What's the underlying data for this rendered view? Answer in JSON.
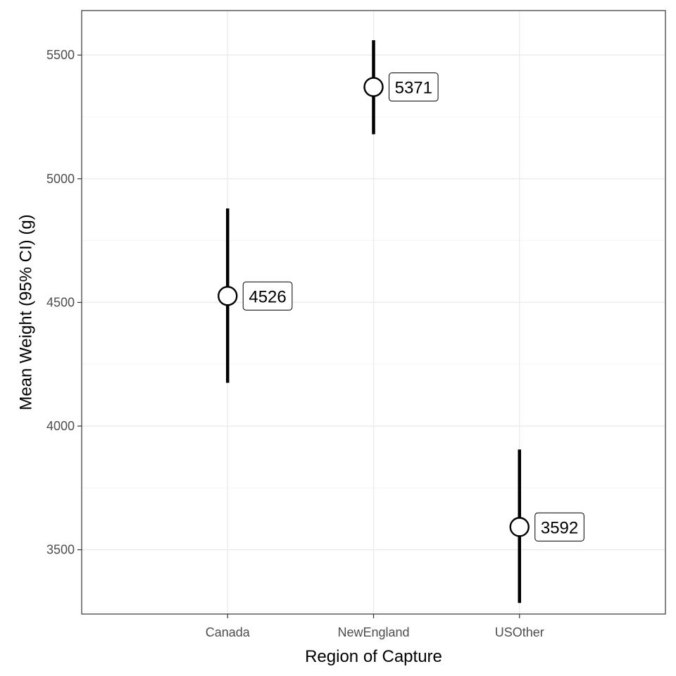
{
  "chart_data": {
    "type": "scatter",
    "xlabel": "Region of Capture",
    "ylabel": "Mean Weight (95% CI) (g)",
    "categories": [
      "Canada",
      "NewEngland",
      "USOther"
    ],
    "means": [
      4526,
      5371,
      3592
    ],
    "ci_lower": [
      4175,
      5180,
      3285
    ],
    "ci_upper": [
      4880,
      5560,
      3905
    ],
    "mean_labels": [
      "4526",
      "5371",
      "3592"
    ],
    "ylim": [
      3240,
      5680
    ],
    "yticks": [
      3500,
      4000,
      4500,
      5000,
      5500
    ],
    "ytick_labels": [
      "3500",
      "4000",
      "4500",
      "5000",
      "5500"
    ],
    "grid": true,
    "legend": "none"
  },
  "colors": {
    "panel_border": "#333333",
    "grid_major": "#ebebeb",
    "grid_minor": "#f5f5f5",
    "marks": "#000000",
    "point_fill": "#ffffff"
  }
}
